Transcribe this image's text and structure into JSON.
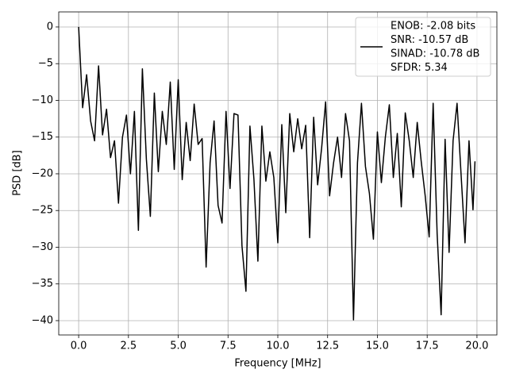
{
  "chart_data": {
    "type": "line",
    "xlabel": "Frequency [MHz]",
    "ylabel": "PSD [dB]",
    "x": [
      0,
      0.2,
      0.4,
      0.6,
      0.8,
      1.0,
      1.2,
      1.4,
      1.6,
      1.8,
      2.0,
      2.2,
      2.4,
      2.6,
      2.8,
      3.0,
      3.2,
      3.4,
      3.6,
      3.8,
      4.0,
      4.2,
      4.4,
      4.6,
      4.8,
      5.0,
      5.2,
      5.4,
      5.6,
      5.8,
      6.0,
      6.2,
      6.4,
      6.6,
      6.8,
      7.0,
      7.2,
      7.4,
      7.6,
      7.8,
      8.0,
      8.2,
      8.4,
      8.6,
      8.8,
      9.0,
      9.2,
      9.4,
      9.6,
      9.8,
      10.0,
      10.2,
      10.4,
      10.6,
      10.8,
      11.0,
      11.2,
      11.4,
      11.6,
      11.8,
      12.0,
      12.2,
      12.4,
      12.6,
      12.8,
      13.0,
      13.2,
      13.4,
      13.6,
      13.8,
      14.0,
      14.2,
      14.4,
      14.6,
      14.8,
      15.0,
      15.2,
      15.4,
      15.6,
      15.8,
      16.0,
      16.2,
      16.4,
      16.6,
      16.8,
      17.0,
      17.2,
      17.4,
      17.6,
      17.8,
      18.0,
      18.2,
      18.4,
      18.6,
      18.8,
      19.0,
      19.2,
      19.4,
      19.6,
      19.8,
      19.9
    ],
    "series": [
      {
        "name": [
          "ENOB: -2.08 bits",
          "SNR: -10.57 dB",
          "SINAD: -10.78 dB",
          "SFDR: 5.34"
        ],
        "color": "#000000",
        "values": [
          0,
          -11,
          -6.5,
          -12.8,
          -15.5,
          -5.3,
          -14.7,
          -11.2,
          -17.8,
          -15.5,
          -24,
          -15,
          -12,
          -20,
          -11.5,
          -27.7,
          -5.7,
          -18,
          -25.8,
          -9,
          -19.7,
          -11.5,
          -16,
          -7.5,
          -19.4,
          -7.2,
          -20.8,
          -13,
          -18.2,
          -10.5,
          -16,
          -15.2,
          -32.7,
          -18.5,
          -12.8,
          -24.3,
          -26.7,
          -11.5,
          -22,
          -11.8,
          -12,
          -29.8,
          -36,
          -13.5,
          -20.7,
          -31.9,
          -13.5,
          -21,
          -17,
          -20.5,
          -29.4,
          -13.3,
          -25.3,
          -11.8,
          -17,
          -12.5,
          -16.6,
          -13.4,
          -28.7,
          -12.3,
          -21.5,
          -16.5,
          -10.2,
          -23,
          -18.5,
          -15,
          -20.5,
          -11.8,
          -15.5,
          -39.9,
          -18.5,
          -10.4,
          -19,
          -22.7,
          -28.9,
          -14.3,
          -21.2,
          -15,
          -10.6,
          -20.5,
          -14.5,
          -24.5,
          -11.7,
          -15.5,
          -20.5,
          -13,
          -18.3,
          -23,
          -28.6,
          -10.4,
          -28.2,
          -39.2,
          -15.3,
          -30.7,
          -15.5,
          -10.4,
          -20,
          -29.4,
          -15.5,
          -24.9,
          -18.3
        ]
      }
    ],
    "xlim": [
      -1.0,
      21.0
    ],
    "ylim": [
      -41.95,
      2.05
    ],
    "xticks": [
      {
        "value": 0,
        "label": "0.0"
      },
      2.5,
      {
        "value": 5,
        "label": "5.0"
      },
      7.5,
      {
        "value": 10,
        "label": "10.0"
      },
      12.5,
      {
        "value": 15,
        "label": "15.0"
      },
      17.5,
      {
        "value": 20,
        "label": "20.0"
      }
    ],
    "yticks": [
      0,
      {
        "value": -5,
        "label": "−5"
      },
      {
        "value": -10,
        "label": "−10"
      },
      {
        "value": -15,
        "label": "−15"
      },
      {
        "value": -20,
        "label": "−20"
      },
      {
        "value": -25,
        "label": "−25"
      },
      {
        "value": -30,
        "label": "−30"
      },
      {
        "value": -35,
        "label": "−35"
      },
      {
        "value": -40,
        "label": "−40"
      }
    ],
    "grid": true,
    "legend": "upper right"
  }
}
